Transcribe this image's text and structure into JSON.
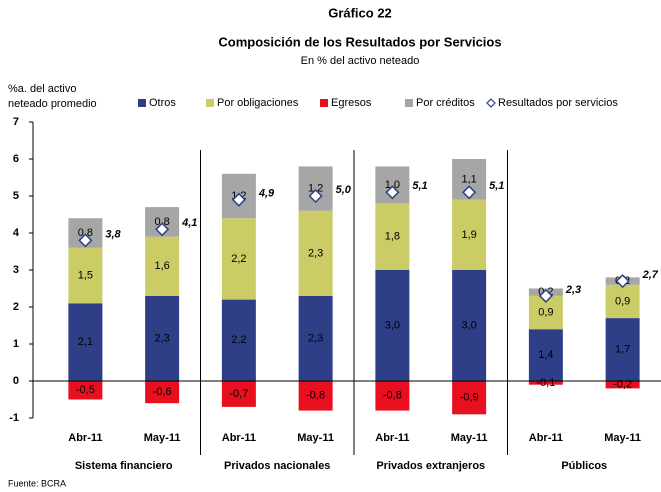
{
  "chart_data": {
    "type": "bar",
    "stacked": true,
    "title": "Gráfico 22",
    "subtitle": "Composición de los Resultados por Servicios",
    "note": "En % del activo neteado",
    "y_label": [
      "%a. del activo",
      "neteado promedio"
    ],
    "source": "Fuente: BCRA",
    "categories": [
      "Abr-11",
      "May-11",
      "Abr-11",
      "May-11",
      "Abr-11",
      "May-11",
      "Abr-11",
      "May-11"
    ],
    "groups": [
      "Sistema financiero",
      "Privados nacionales",
      "Privados extranjeros",
      "Públicos"
    ],
    "ylim": [
      -1,
      7
    ],
    "yticks": [
      -1,
      0,
      1,
      2,
      3,
      4,
      5,
      6,
      7
    ],
    "series": [
      {
        "name": "Otros",
        "color": "#2e3f87",
        "values": [
          2.1,
          2.3,
          2.2,
          2.3,
          3.0,
          3.0,
          1.4,
          1.7
        ],
        "value_labels": [
          "2,1",
          "2,3",
          "2,2",
          "2,3",
          "3,0",
          "3,0",
          "1,4",
          "1,7"
        ]
      },
      {
        "name": "Por obligaciones",
        "color": "#cccc66",
        "values": [
          1.5,
          1.6,
          2.2,
          2.3,
          1.8,
          1.9,
          0.9,
          0.9
        ],
        "value_labels": [
          "1,5",
          "1,6",
          "2,2",
          "2,3",
          "1,8",
          "1,9",
          "0,9",
          "0,9"
        ]
      },
      {
        "name": "Egresos",
        "color": "#e8101e",
        "values": [
          -0.5,
          -0.6,
          -0.7,
          -0.8,
          -0.8,
          -0.9,
          -0.1,
          -0.2
        ],
        "value_labels": [
          "-0,5",
          "-0,6",
          "-0,7",
          "-0,8",
          "-0,8",
          "-0,9",
          "-0,1",
          "-0,2"
        ]
      },
      {
        "name": "Por créditos",
        "color": "#a6a6a6",
        "values": [
          0.8,
          0.8,
          1.2,
          1.2,
          1.0,
          1.1,
          0.2,
          0.2
        ],
        "value_labels": [
          "0,8",
          "0,8",
          "1,2",
          "1,2",
          "1,0",
          "1,1",
          "0,2",
          "0,2"
        ]
      },
      {
        "name": "Resultados por servicios",
        "type": "scatter",
        "marker": "diamond",
        "color": "#2e3f87",
        "values": [
          3.8,
          4.1,
          4.9,
          5.0,
          5.1,
          5.1,
          2.3,
          2.7
        ],
        "value_labels": [
          "3,8",
          "4,1",
          "4,9",
          "5,0",
          "5,1",
          "5,1",
          "2,3",
          "2,7"
        ]
      }
    ]
  }
}
